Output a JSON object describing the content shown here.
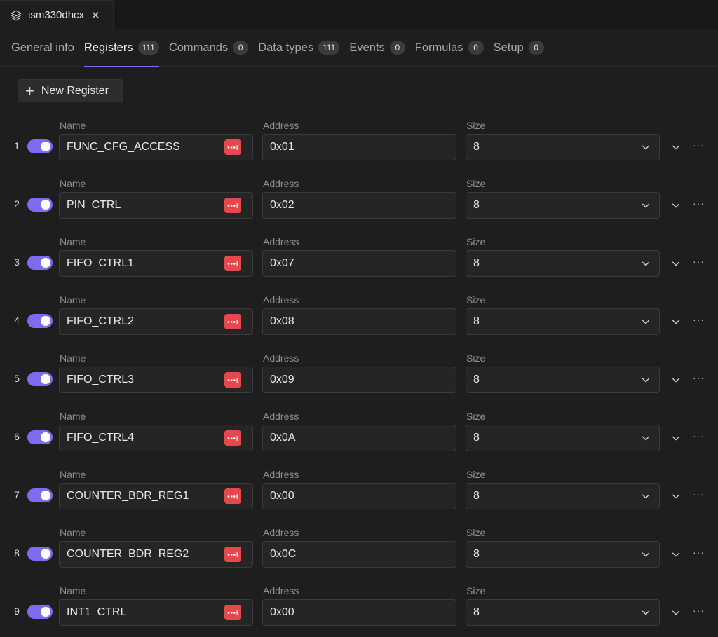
{
  "file_tab": {
    "title": "ism330dhcx",
    "close": "✕"
  },
  "tabs": [
    {
      "label": "General info",
      "count": ""
    },
    {
      "label": "Registers",
      "count": "111",
      "active": true
    },
    {
      "label": "Commands",
      "count": "0"
    },
    {
      "label": "Data types",
      "count": "111"
    },
    {
      "label": "Events",
      "count": "0"
    },
    {
      "label": "Formulas",
      "count": "0"
    },
    {
      "label": "Setup",
      "count": "0"
    }
  ],
  "new_button": {
    "label": "New Register"
  },
  "labels": {
    "name": "Name",
    "address": "Address",
    "size": "Size"
  },
  "registers": [
    {
      "index": "1",
      "name": "FUNC_CFG_ACCESS",
      "address": "0x01",
      "size": "8",
      "enabled": true
    },
    {
      "index": "2",
      "name": "PIN_CTRL",
      "address": "0x02",
      "size": "8",
      "enabled": true
    },
    {
      "index": "3",
      "name": "FIFO_CTRL1",
      "address": "0x07",
      "size": "8",
      "enabled": true
    },
    {
      "index": "4",
      "name": "FIFO_CTRL2",
      "address": "0x08",
      "size": "8",
      "enabled": true
    },
    {
      "index": "5",
      "name": "FIFO_CTRL3",
      "address": "0x09",
      "size": "8",
      "enabled": true
    },
    {
      "index": "6",
      "name": "FIFO_CTRL4",
      "address": "0x0A",
      "size": "8",
      "enabled": true
    },
    {
      "index": "7",
      "name": "COUNTER_BDR_REG1",
      "address": "0x00",
      "size": "8",
      "enabled": true
    },
    {
      "index": "8",
      "name": "COUNTER_BDR_REG2",
      "address": "0x0C",
      "size": "8",
      "enabled": true
    },
    {
      "index": "9",
      "name": "INT1_CTRL",
      "address": "0x00",
      "size": "8",
      "enabled": true
    }
  ],
  "colors": {
    "accent": "#7c6cf0",
    "password_icon": "#e5484d",
    "background": "#1e1e1e"
  },
  "icons": {
    "file_tab": "layers-icon",
    "password": "password-dots-icon",
    "dropdown": "chevron-down-icon",
    "more": "more-horizontal-icon"
  }
}
